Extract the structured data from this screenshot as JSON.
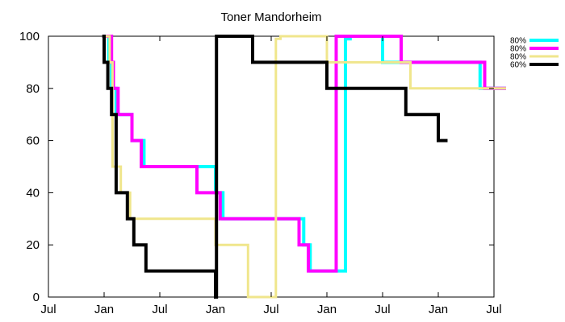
{
  "chart_data": {
    "type": "line",
    "title": "Toner Mandorheim",
    "xlabel": "",
    "ylabel": "",
    "x_unit": "months since start of first Jan",
    "xlim": [
      -6,
      42
    ],
    "ylim": [
      0,
      100
    ],
    "x_ticks": [
      {
        "value": -6,
        "label": "Jul"
      },
      {
        "value": 0,
        "label": "Jan"
      },
      {
        "value": 6,
        "label": "Jul"
      },
      {
        "value": 12,
        "label": "Jan"
      },
      {
        "value": 18,
        "label": "Jul"
      },
      {
        "value": 24,
        "label": "Jan"
      },
      {
        "value": 30,
        "label": "Jul"
      },
      {
        "value": 36,
        "label": "Jan"
      },
      {
        "value": 42,
        "label": "Jul"
      }
    ],
    "y_ticks": [
      0,
      20,
      40,
      60,
      80,
      100
    ],
    "grid": false,
    "legend_position": "top-right",
    "series": [
      {
        "name": "80%",
        "color": "#00ffff",
        "width": 4,
        "points": [
          [
            0.1,
            100
          ],
          [
            0.5,
            100
          ],
          [
            0.5,
            90
          ],
          [
            0.8,
            90
          ],
          [
            0.8,
            80
          ],
          [
            1.3,
            80
          ],
          [
            1.3,
            70
          ],
          [
            3.0,
            70
          ],
          [
            3.0,
            60
          ],
          [
            4.3,
            60
          ],
          [
            4.3,
            50
          ],
          [
            12.0,
            50
          ],
          [
            12.0,
            40
          ],
          [
            12.8,
            40
          ],
          [
            12.8,
            30
          ],
          [
            21.5,
            30
          ],
          [
            21.5,
            20
          ],
          [
            22.2,
            20
          ],
          [
            22.2,
            10
          ],
          [
            26.0,
            10
          ],
          [
            26.0,
            99
          ],
          [
            26.5,
            99
          ],
          [
            26.5,
            100
          ],
          [
            30.0,
            100
          ],
          [
            30.0,
            90
          ],
          [
            40.5,
            90
          ],
          [
            40.5,
            80
          ],
          [
            43.3,
            80
          ]
        ]
      },
      {
        "name": "80%",
        "color": "#ff00ff",
        "width": 4,
        "points": [
          [
            0.2,
            100
          ],
          [
            0.8,
            100
          ],
          [
            0.8,
            90
          ],
          [
            1.0,
            90
          ],
          [
            1.0,
            80
          ],
          [
            1.5,
            80
          ],
          [
            1.5,
            70
          ],
          [
            3.0,
            70
          ],
          [
            3.0,
            60
          ],
          [
            4.0,
            60
          ],
          [
            4.0,
            50
          ],
          [
            10.0,
            50
          ],
          [
            10.0,
            40
          ],
          [
            12.5,
            40
          ],
          [
            12.5,
            30
          ],
          [
            21.0,
            30
          ],
          [
            21.0,
            20
          ],
          [
            22.0,
            20
          ],
          [
            22.0,
            10
          ],
          [
            25.0,
            10
          ],
          [
            25.0,
            100
          ],
          [
            32.0,
            100
          ],
          [
            32.0,
            90
          ],
          [
            41.0,
            90
          ],
          [
            41.0,
            80
          ],
          [
            43.3,
            80
          ]
        ]
      },
      {
        "name": "80%",
        "color": "#f0e68c",
        "width": 3,
        "points": [
          [
            0.1,
            100
          ],
          [
            0.6,
            100
          ],
          [
            0.6,
            90
          ],
          [
            0.9,
            90
          ],
          [
            0.9,
            50
          ],
          [
            1.8,
            50
          ],
          [
            1.8,
            40
          ],
          [
            2.8,
            40
          ],
          [
            2.8,
            30
          ],
          [
            12.0,
            30
          ],
          [
            12.0,
            20
          ],
          [
            15.5,
            20
          ],
          [
            15.5,
            0
          ],
          [
            18.5,
            0
          ],
          [
            18.5,
            99
          ],
          [
            19.0,
            99
          ],
          [
            19.0,
            100
          ],
          [
            24.0,
            100
          ],
          [
            24.0,
            90
          ],
          [
            33.0,
            90
          ],
          [
            33.0,
            80
          ],
          [
            43.3,
            80
          ]
        ]
      },
      {
        "name": "60%",
        "color": "#000000",
        "width": 4,
        "points": [
          [
            -0.2,
            100
          ],
          [
            0,
            100
          ],
          [
            0,
            90
          ],
          [
            0.4,
            90
          ],
          [
            0.4,
            80
          ],
          [
            0.8,
            80
          ],
          [
            0.8,
            70
          ],
          [
            1.3,
            70
          ],
          [
            1.3,
            40
          ],
          [
            2.5,
            40
          ],
          [
            2.5,
            30
          ],
          [
            3.2,
            30
          ],
          [
            3.2,
            20
          ],
          [
            4.5,
            20
          ],
          [
            4.5,
            10
          ],
          [
            12.0,
            10
          ],
          [
            12.0,
            0
          ],
          [
            12.1,
            0
          ],
          [
            12.1,
            100
          ],
          [
            16.0,
            100
          ],
          [
            16.0,
            90
          ],
          [
            24.0,
            90
          ],
          [
            24.0,
            80
          ],
          [
            32.5,
            80
          ],
          [
            32.5,
            70
          ],
          [
            36.0,
            70
          ],
          [
            36.0,
            60
          ],
          [
            37.0,
            60
          ]
        ]
      }
    ]
  }
}
